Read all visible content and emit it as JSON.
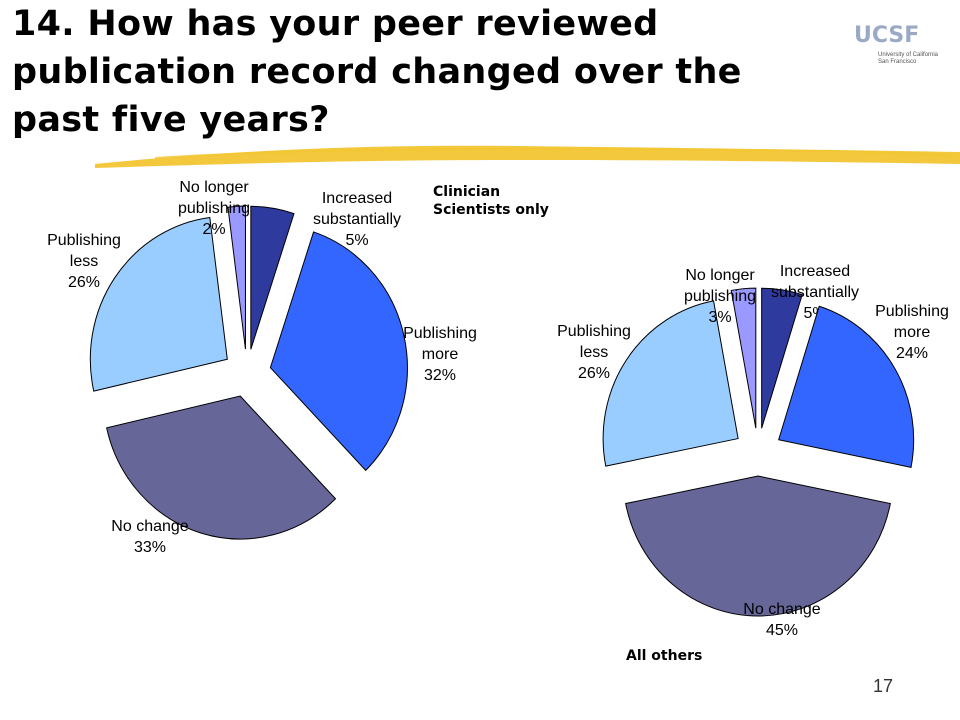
{
  "slide": {
    "title": "14. How has your peer reviewed publication record changed over the past five years?",
    "logo": {
      "mark": "UCSF",
      "line1": "University of California",
      "line2": "San Francisco"
    },
    "page_number": "17"
  },
  "colors": {
    "Increased substantially": "#2e3a9e",
    "Publishing more": "#3366ff",
    "No change": "#666699",
    "Publishing less": "#99ccff",
    "No longer publishing": "#9999ff",
    "brush": "#f2c531"
  },
  "chart_data": [
    {
      "type": "pie",
      "title": "Clinician\nScientists only",
      "exploded": true,
      "start": "12 o'clock, clockwise",
      "slices": [
        {
          "label": "Increased\nsubstantially",
          "pct_label": "5%",
          "value": 5
        },
        {
          "label": "Publishing\nmore",
          "pct_label": "32%",
          "value": 32
        },
        {
          "label": "No change",
          "pct_label": "33%",
          "value": 33
        },
        {
          "label": "Publishing\nless",
          "pct_label": "26%",
          "value": 26
        },
        {
          "label": "No longer\npublishing",
          "pct_label": "2%",
          "value": 2
        }
      ]
    },
    {
      "type": "pie",
      "title": "All others",
      "exploded": true,
      "start": "12 o'clock, clockwise",
      "slices": [
        {
          "label": "Increased\nsubstantially",
          "pct_label": "5%",
          "value": 5
        },
        {
          "label": "Publishing\nmore",
          "pct_label": "24%",
          "value": 24
        },
        {
          "label": "No change",
          "pct_label": "45%",
          "value": 45
        },
        {
          "label": "Publishing\nless",
          "pct_label": "26%",
          "value": 26
        },
        {
          "label": "No longer\npublishing",
          "pct_label": "3%",
          "value": 3
        }
      ]
    }
  ]
}
